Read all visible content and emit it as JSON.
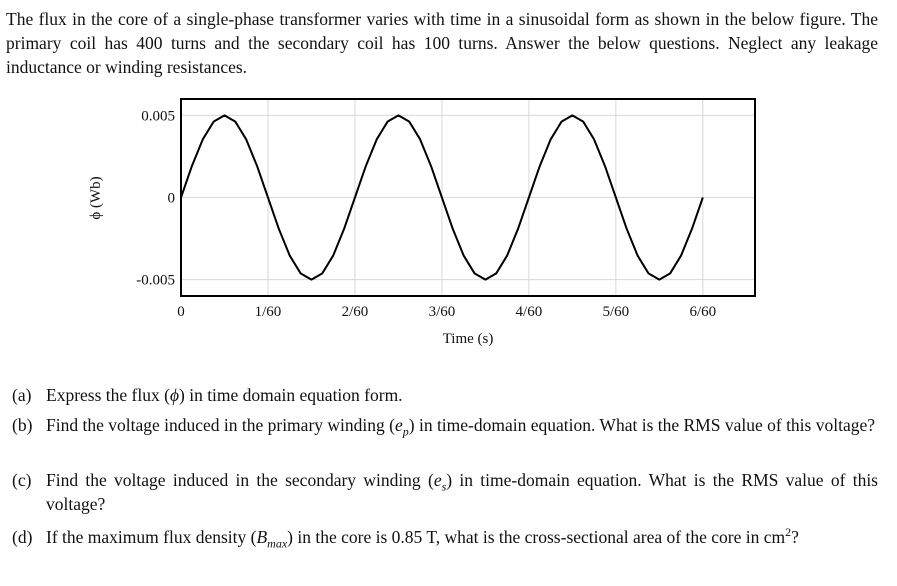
{
  "intro": "The flux in the core of a single-phase transformer varies with time in a sinusoidal form as shown in the below figure. The primary coil has 400 turns and the secondary coil has 100 turns. Answer the below questions. Neglect any leakage inductance or winding resistances.",
  "chart_data": {
    "type": "line",
    "x_label": "Time (s)",
    "y_label": "ϕ (Wb)",
    "x": [
      0,
      0.002083,
      0.004167,
      0.00625,
      0.008333,
      0.010417,
      0.0125,
      0.014583,
      0.016667,
      0.01875,
      0.020833,
      0.022917,
      0.025,
      0.027083,
      0.029167,
      0.03125,
      0.033333,
      0.035417,
      0.0375,
      0.039583,
      0.041667,
      0.04375,
      0.045833,
      0.047917,
      0.05,
      0.052083,
      0.054167,
      0.05625,
      0.058333,
      0.060417,
      0.0625,
      0.064583,
      0.066667,
      0.06875,
      0.070833,
      0.072917,
      0.075,
      0.077083,
      0.079167,
      0.08125,
      0.083333,
      0.085417,
      0.0875,
      0.089583,
      0.091667,
      0.09375,
      0.095833,
      0.097917,
      0.1
    ],
    "values": [
      0,
      0.001913,
      0.003536,
      0.004619,
      0.005,
      0.004619,
      0.003536,
      0.001913,
      0,
      -0.001913,
      -0.003536,
      -0.004619,
      -0.005,
      -0.004619,
      -0.003536,
      -0.001913,
      0,
      0.001913,
      0.003536,
      0.004619,
      0.005,
      0.004619,
      0.003536,
      0.001913,
      0,
      -0.001913,
      -0.003536,
      -0.004619,
      -0.005,
      -0.004619,
      -0.003536,
      -0.001913,
      0,
      0.001913,
      0.003536,
      0.004619,
      0.005,
      0.004619,
      0.003536,
      0.001913,
      0,
      -0.001913,
      -0.003536,
      -0.004619,
      -0.005,
      -0.004619,
      -0.003536,
      -0.001913,
      0
    ],
    "color": "#000000",
    "xlim": [
      0,
      0.11
    ],
    "ylim": [
      -0.006,
      0.006
    ],
    "xticks": [
      0,
      {
        "value": 0.016667,
        "label": "1/60"
      },
      {
        "value": 0.033333,
        "label": "2/60"
      },
      {
        "value": 0.05,
        "label": "3/60"
      },
      {
        "value": 0.066667,
        "label": "4/60"
      },
      {
        "value": 0.083333,
        "label": "5/60"
      },
      {
        "value": 0.1,
        "label": "6/60"
      }
    ],
    "yticks": [
      -0.005,
      0,
      0.005
    ],
    "grid": true
  },
  "questions": [
    {
      "label": "(a)",
      "before": "Express the flux (",
      "symbol": "ϕ",
      "after": ") in time domain equation form."
    },
    {
      "label": "(b)",
      "before": "Find the voltage induced in the primary winding (",
      "symbol": "e",
      "subscript": "p",
      "after": ") in time-domain equation. What is the RMS value of this voltage?"
    },
    {
      "label": "(c)",
      "before": "Find the voltage induced in the secondary winding (",
      "symbol": "e",
      "subscript": "s",
      "after": ") in time-domain equation. What is the RMS value of this voltage?"
    },
    {
      "label": "(d)",
      "before": "If the maximum flux density (",
      "symbol": "B",
      "subscript": "max",
      "after": ") in the core is 0.85 T, what is the cross-sectional area of the core in cm",
      "superscript": "2",
      "end": "?"
    }
  ]
}
